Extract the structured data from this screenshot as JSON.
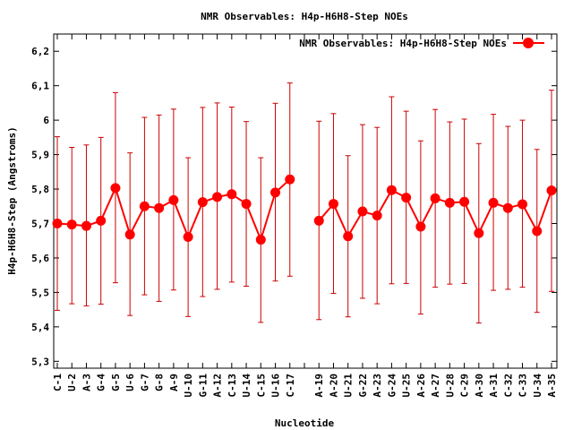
{
  "chart_data": {
    "type": "line",
    "title": "NMR Observables: H4p-H6H8-Step NOEs",
    "xlabel": "Nucleotide",
    "ylabel": "H4p-H6H8-Step (Angstroms)",
    "ylim": [
      5.28,
      6.25
    ],
    "yticks": [
      5.3,
      5.4,
      5.5,
      5.6,
      5.7,
      5.8,
      5.9,
      6,
      6.1,
      6.2
    ],
    "ytick_labels": [
      "5,3",
      "5,4",
      "5,5",
      "5,6",
      "5,7",
      "5,8",
      "5,9",
      "6",
      "6,1",
      "6,2"
    ],
    "grid": false,
    "legend_position": "top-right",
    "colors": {
      "series": "#ff0000",
      "errorbar": "#cc0000",
      "axis": "#000000"
    },
    "categories": [
      "C-1",
      "U-2",
      "A-3",
      "G-4",
      "G-5",
      "U-6",
      "G-7",
      "G-8",
      "A-9",
      "U-10",
      "G-11",
      "A-12",
      "C-13",
      "U-14",
      "C-15",
      "U-16",
      "C-17",
      "",
      "A-19",
      "A-20",
      "U-21",
      "G-22",
      "A-23",
      "G-24",
      "U-25",
      "A-26",
      "A-27",
      "U-28",
      "C-29",
      "A-30",
      "A-31",
      "C-32",
      "C-33",
      "U-34",
      "A-35"
    ],
    "series": [
      {
        "name": "NMR Observables: H4p-H6H8-Step NOEs",
        "values": [
          5.7,
          5.697,
          5.693,
          5.708,
          5.803,
          5.668,
          5.75,
          5.745,
          5.768,
          5.661,
          5.762,
          5.777,
          5.785,
          5.757,
          5.653,
          5.79,
          5.828,
          null,
          5.708,
          5.757,
          5.663,
          5.735,
          5.723,
          5.797,
          5.775,
          5.691,
          5.773,
          5.76,
          5.763,
          5.672,
          5.76,
          5.745,
          5.756,
          5.678,
          5.796
        ],
        "error_low": [
          5.448,
          5.467,
          5.461,
          5.466,
          5.528,
          5.433,
          5.493,
          5.474,
          5.507,
          5.43,
          5.488,
          5.509,
          5.53,
          5.518,
          5.413,
          5.533,
          5.547,
          null,
          5.421,
          5.497,
          5.429,
          5.483,
          5.467,
          5.525,
          5.526,
          5.437,
          5.515,
          5.524,
          5.526,
          5.411,
          5.506,
          5.509,
          5.515,
          5.442,
          5.503
        ],
        "error_high": [
          5.952,
          5.921,
          5.928,
          5.95,
          6.08,
          5.905,
          6.008,
          6.015,
          6.032,
          5.891,
          6.037,
          6.05,
          6.038,
          5.996,
          5.891,
          6.049,
          6.108,
          null,
          5.997,
          6.019,
          5.897,
          5.987,
          5.979,
          6.068,
          6.026,
          5.94,
          6.031,
          5.995,
          6.003,
          5.932,
          6.017,
          5.982,
          6.0,
          5.915,
          6.087
        ]
      }
    ]
  }
}
